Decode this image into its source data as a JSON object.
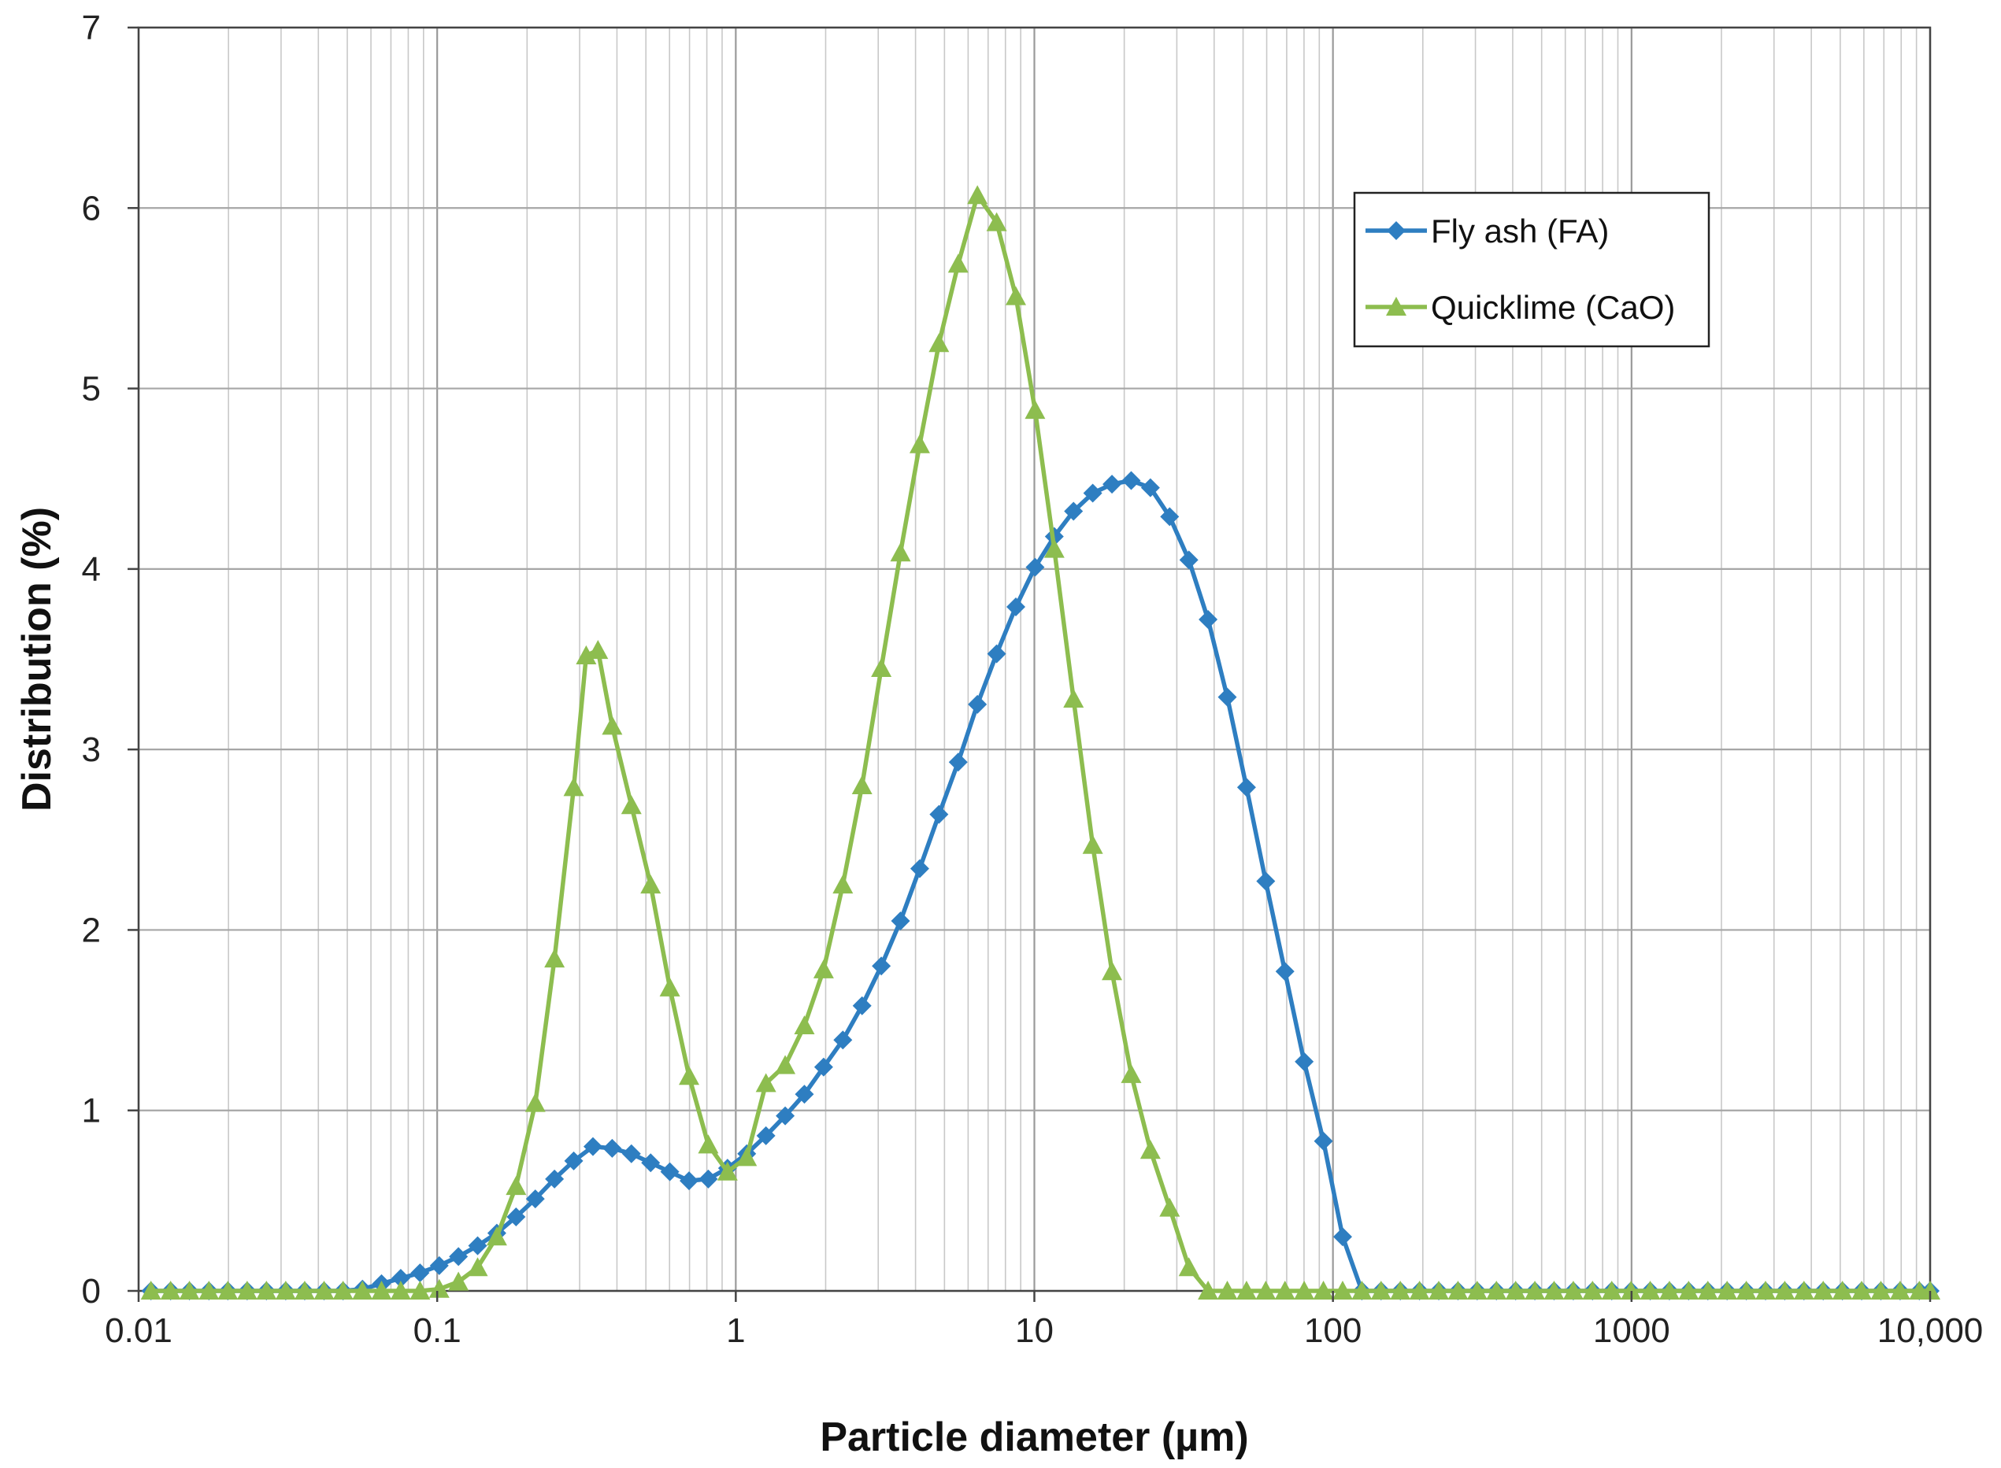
{
  "chart_data": {
    "type": "line",
    "title": "",
    "xlabel": "Particle diameter (µm)",
    "ylabel": "Distribution (%)",
    "xscale": "log",
    "xlim": [
      0.01,
      10000
    ],
    "ylim": [
      0,
      7
    ],
    "x_ticks": [
      {
        "value": 0.01,
        "label": "0.01"
      },
      {
        "value": 0.1,
        "label": "0.1"
      },
      {
        "value": 1,
        "label": "1"
      },
      {
        "value": 10,
        "label": "10"
      },
      {
        "value": 100,
        "label": "100"
      },
      {
        "value": 1000,
        "label": "1000"
      },
      {
        "value": 10000,
        "label": "10,000"
      }
    ],
    "y_ticks": [
      {
        "value": 0,
        "label": "0"
      },
      {
        "value": 1,
        "label": "1"
      },
      {
        "value": 2,
        "label": "2"
      },
      {
        "value": 3,
        "label": "3"
      },
      {
        "value": 4,
        "label": "4"
      },
      {
        "value": 5,
        "label": "5"
      },
      {
        "value": 6,
        "label": "6"
      },
      {
        "value": 7,
        "label": "7"
      }
    ],
    "grid": true,
    "minor_grid": true,
    "legend_position": "top-right",
    "series": [
      {
        "name": "Fly ash (FA)",
        "color": "#2E7EC1",
        "marker": "diamond",
        "points": [
          [
            0.011,
            0
          ],
          [
            0.0128,
            0
          ],
          [
            0.0148,
            0
          ],
          [
            0.0172,
            0
          ],
          [
            0.0199,
            0
          ],
          [
            0.0231,
            0
          ],
          [
            0.0268,
            0
          ],
          [
            0.0311,
            0
          ],
          [
            0.036,
            0
          ],
          [
            0.0418,
            0
          ],
          [
            0.0484,
            0
          ],
          [
            0.0562,
            0.01
          ],
          [
            0.0651,
            0.04
          ],
          [
            0.0755,
            0.07
          ],
          [
            0.0876,
            0.1
          ],
          [
            0.1016,
            0.14
          ],
          [
            0.1178,
            0.19
          ],
          [
            0.1366,
            0.25
          ],
          [
            0.1584,
            0.32
          ],
          [
            0.1837,
            0.41
          ],
          [
            0.2131,
            0.51
          ],
          [
            0.2471,
            0.62
          ],
          [
            0.2866,
            0.72
          ],
          [
            0.3324,
            0.8
          ],
          [
            0.3855,
            0.79
          ],
          [
            0.4471,
            0.76
          ],
          [
            0.5186,
            0.71
          ],
          [
            0.6014,
            0.66
          ],
          [
            0.6975,
            0.61
          ],
          [
            0.809,
            0.62
          ],
          [
            0.9382,
            0.68
          ],
          [
            1.0882,
            0.76
          ],
          [
            1.2621,
            0.86
          ],
          [
            1.4638,
            0.97
          ],
          [
            1.6976,
            1.09
          ],
          [
            1.9689,
            1.24
          ],
          [
            2.2835,
            1.39
          ],
          [
            2.6484,
            1.58
          ],
          [
            3.0716,
            1.8
          ],
          [
            3.5624,
            2.05
          ],
          [
            4.1316,
            2.34
          ],
          [
            4.7918,
            2.64
          ],
          [
            5.5575,
            2.93
          ],
          [
            6.4455,
            3.25
          ],
          [
            7.4754,
            3.53
          ],
          [
            8.6699,
            3.79
          ],
          [
            10.0552,
            4.01
          ],
          [
            11.662,
            4.18
          ],
          [
            13.5254,
            4.32
          ],
          [
            15.6866,
            4.42
          ],
          [
            18.1932,
            4.47
          ],
          [
            21.1002,
            4.49
          ],
          [
            24.4718,
            4.45
          ],
          [
            28.3821,
            4.29
          ],
          [
            32.9173,
            4.05
          ],
          [
            38.1771,
            3.72
          ],
          [
            44.2773,
            3.29
          ],
          [
            51.3522,
            2.79
          ],
          [
            59.5576,
            2.27
          ],
          [
            69.0741,
            1.77
          ],
          [
            80.111,
            1.27
          ],
          [
            92.9116,
            0.83
          ],
          [
            107.76,
            0.3
          ],
          [
            124.98,
            0
          ],
          [
            144.95,
            0
          ],
          [
            168.11,
            0
          ],
          [
            194.97,
            0
          ],
          [
            226.13,
            0
          ],
          [
            262.26,
            0
          ],
          [
            304.16,
            0
          ],
          [
            352.76,
            0
          ],
          [
            409.13,
            0
          ],
          [
            474.5,
            0
          ],
          [
            550.32,
            0
          ],
          [
            638.26,
            0
          ],
          [
            740.24,
            0
          ],
          [
            858.52,
            0
          ],
          [
            995.7,
            0
          ],
          [
            1154.8,
            0
          ],
          [
            1339.3,
            0
          ],
          [
            1553.3,
            0
          ],
          [
            1801.5,
            0
          ],
          [
            2089.4,
            0
          ],
          [
            2423.2,
            0
          ],
          [
            2810.4,
            0
          ],
          [
            3259.5,
            0
          ],
          [
            3780.3,
            0
          ],
          [
            4384.4,
            0
          ],
          [
            5085,
            0
          ],
          [
            5897.5,
            0
          ],
          [
            6839.8,
            0
          ],
          [
            7932.8,
            0
          ],
          [
            9200.4,
            0
          ],
          [
            10000,
            0
          ]
        ]
      },
      {
        "name": "Quicklime (CaO)",
        "color": "#8DBD4F",
        "marker": "triangle",
        "points": [
          [
            0.011,
            0
          ],
          [
            0.0128,
            0
          ],
          [
            0.0148,
            0
          ],
          [
            0.0172,
            0
          ],
          [
            0.0199,
            0
          ],
          [
            0.0231,
            0
          ],
          [
            0.0268,
            0
          ],
          [
            0.0311,
            0
          ],
          [
            0.036,
            0
          ],
          [
            0.0418,
            0
          ],
          [
            0.0484,
            0
          ],
          [
            0.0562,
            0
          ],
          [
            0.0651,
            0
          ],
          [
            0.0755,
            0
          ],
          [
            0.0876,
            0
          ],
          [
            0.1016,
            0.01
          ],
          [
            0.1178,
            0.05
          ],
          [
            0.1366,
            0.13
          ],
          [
            0.1584,
            0.3
          ],
          [
            0.1837,
            0.58
          ],
          [
            0.2131,
            1.04
          ],
          [
            0.2471,
            1.84
          ],
          [
            0.2866,
            2.79
          ],
          [
            0.3155,
            3.52
          ],
          [
            0.3455,
            3.55
          ],
          [
            0.3855,
            3.13
          ],
          [
            0.4471,
            2.69
          ],
          [
            0.5186,
            2.25
          ],
          [
            0.6014,
            1.68
          ],
          [
            0.6975,
            1.19
          ],
          [
            0.809,
            0.81
          ],
          [
            0.9382,
            0.66
          ],
          [
            1.0882,
            0.74
          ],
          [
            1.2621,
            1.15
          ],
          [
            1.4638,
            1.25
          ],
          [
            1.6976,
            1.47
          ],
          [
            1.9689,
            1.78
          ],
          [
            2.2835,
            2.25
          ],
          [
            2.6484,
            2.8
          ],
          [
            3.0716,
            3.45
          ],
          [
            3.5624,
            4.09
          ],
          [
            4.1316,
            4.69
          ],
          [
            4.7918,
            5.25
          ],
          [
            5.5575,
            5.69
          ],
          [
            6.4455,
            6.07
          ],
          [
            7.4754,
            5.92
          ],
          [
            8.6699,
            5.51
          ],
          [
            10.0552,
            4.88
          ],
          [
            11.662,
            4.11
          ],
          [
            13.5254,
            3.28
          ],
          [
            15.6866,
            2.47
          ],
          [
            18.1932,
            1.77
          ],
          [
            21.1002,
            1.2
          ],
          [
            24.4718,
            0.78
          ],
          [
            28.3821,
            0.46
          ],
          [
            32.9173,
            0.13
          ],
          [
            38.1771,
            0
          ],
          [
            44.2773,
            0
          ],
          [
            51.3522,
            0
          ],
          [
            59.5576,
            0
          ],
          [
            69.0741,
            0
          ],
          [
            80.111,
            0
          ],
          [
            92.9116,
            0
          ],
          [
            107.76,
            0
          ],
          [
            124.98,
            0
          ],
          [
            144.95,
            0
          ],
          [
            168.11,
            0
          ],
          [
            194.97,
            0
          ],
          [
            226.13,
            0
          ],
          [
            262.26,
            0
          ],
          [
            304.16,
            0
          ],
          [
            352.76,
            0
          ],
          [
            409.13,
            0
          ],
          [
            474.5,
            0
          ],
          [
            550.32,
            0
          ],
          [
            638.26,
            0
          ],
          [
            740.24,
            0
          ],
          [
            858.52,
            0
          ],
          [
            995.7,
            0
          ],
          [
            1154.8,
            0
          ],
          [
            1339.3,
            0
          ],
          [
            1553.3,
            0
          ],
          [
            1801.5,
            0
          ],
          [
            2089.4,
            0
          ],
          [
            2423.2,
            0
          ],
          [
            2810.4,
            0
          ],
          [
            3259.5,
            0
          ],
          [
            3780.3,
            0
          ],
          [
            4384.4,
            0
          ],
          [
            5085,
            0
          ],
          [
            5897.5,
            0
          ],
          [
            6839.8,
            0
          ],
          [
            7932.8,
            0
          ],
          [
            9200.4,
            0
          ],
          [
            10000,
            0
          ]
        ]
      }
    ]
  }
}
